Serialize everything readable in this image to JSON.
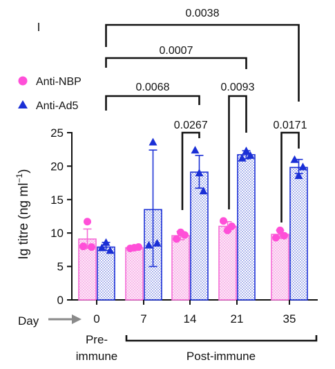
{
  "chart_data": {
    "type": "bar",
    "ylabel": "Ig titre (ng ml",
    "ylabel_sup": "−1",
    "ylim": [
      0,
      25
    ],
    "yticks": [
      0,
      5,
      10,
      15,
      20,
      25
    ],
    "categories": [
      "0",
      "7",
      "14",
      "21",
      "35"
    ],
    "x_prefix": "Day",
    "groups": [
      {
        "label": "Pre-\nimmune",
        "line1": "Pre-",
        "line2": "immune",
        "categories": [
          "0"
        ]
      },
      {
        "label": "Post-immune",
        "categories": [
          "7",
          "14",
          "21",
          "35"
        ]
      }
    ],
    "series": [
      {
        "name": "Anti-NBP",
        "color": "#ff4fd8",
        "marker": "circle",
        "values": [
          9.1,
          7.8,
          9.6,
          11.0,
          9.8
        ],
        "error": [
          [
            7.7,
            10.6
          ],
          [
            7.6,
            8.0
          ],
          [
            9.0,
            10.2
          ],
          [
            10.3,
            11.7
          ],
          [
            9.2,
            10.4
          ]
        ],
        "points": [
          [
            8.0,
            11.7,
            7.9
          ],
          [
            7.7,
            7.8,
            7.9
          ],
          [
            9.1,
            10.1,
            9.7
          ],
          [
            11.8,
            10.4,
            11.0
          ],
          [
            9.3,
            10.4,
            9.6
          ]
        ]
      },
      {
        "name": "Anti-Ad5",
        "color": "#1a2fd6",
        "marker": "triangle",
        "values": [
          7.9,
          13.5,
          19.1,
          21.7,
          19.8
        ],
        "error": [
          [
            7.4,
            8.6
          ],
          [
            5.0,
            22.4
          ],
          [
            16.7,
            21.6
          ],
          [
            21.1,
            22.3
          ],
          [
            18.9,
            21.0
          ]
        ],
        "points": [
          [
            7.8,
            8.6,
            7.4
          ],
          [
            8.2,
            23.6,
            8.5
          ],
          [
            22.4,
            19.0,
            16.3
          ],
          [
            21.2,
            22.3,
            21.6
          ],
          [
            21.0,
            18.6,
            19.9
          ]
        ]
      }
    ],
    "comparisons": [
      {
        "from": "0",
        "to": "35",
        "p": "0.0038"
      },
      {
        "from": "0",
        "to": "21",
        "p": "0.0007"
      },
      {
        "from": "0",
        "to": "14",
        "p": "0.0068"
      },
      {
        "from": "7",
        "to": "14",
        "p": "0.0267"
      },
      {
        "from": "21",
        "to": "21",
        "p": "0.0093"
      },
      {
        "from": "35",
        "to": "35",
        "p": "0.0171"
      }
    ]
  }
}
